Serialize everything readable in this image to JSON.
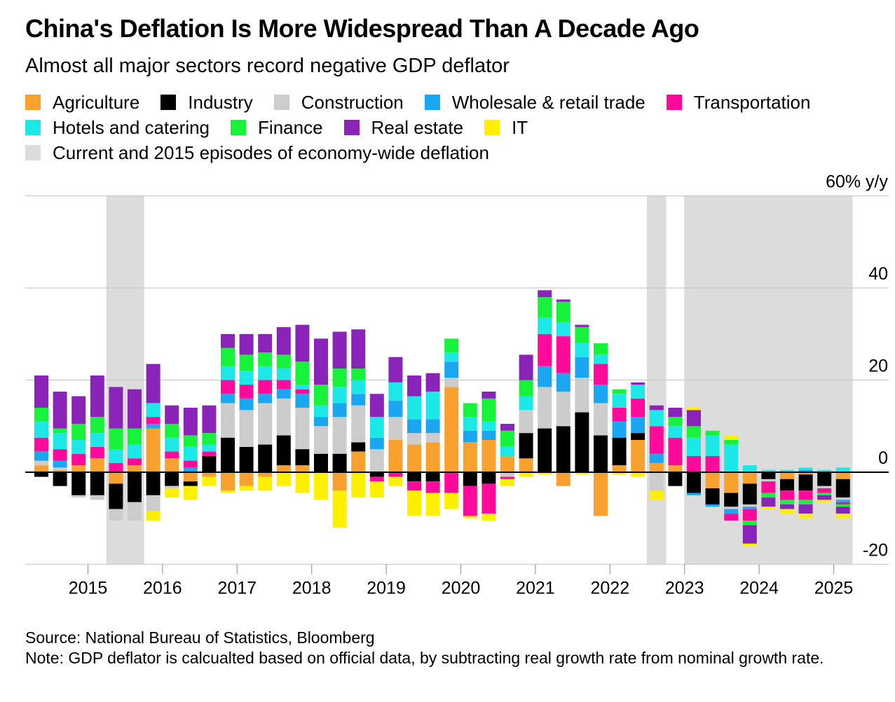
{
  "title": "China's Deflation Is More Widespread Than A Decade Ago",
  "subtitle": "Almost all major sectors record negative GDP deflator",
  "legend": {
    "row1": [
      {
        "label": "Agriculture",
        "color": "#F9A12E"
      },
      {
        "label": "Industry",
        "color": "#000000"
      },
      {
        "label": "Construction",
        "color": "#CCCCCC"
      },
      {
        "label": "Wholesale & retail trade",
        "color": "#1BA6F2"
      },
      {
        "label": "Transportation",
        "color": "#FF0A9A"
      }
    ],
    "row2": [
      {
        "label": "Hotels and catering",
        "color": "#1CE8E8"
      },
      {
        "label": "Finance",
        "color": "#17F23A"
      },
      {
        "label": "Real estate",
        "color": "#8A23B8"
      },
      {
        "label": "IT",
        "color": "#FFEF00"
      }
    ],
    "row3": [
      {
        "label": "Current and 2015 episodes of economy-wide deflation",
        "color": "#DCDCDC"
      }
    ]
  },
  "footer": {
    "source": "Source: National Bureau of Statistics, Bloomberg",
    "note": "Note: GDP deflator is calcualted based on official data, by subtracting real growth rate from nominal growth rate."
  },
  "chart_data": {
    "type": "bar",
    "stacked": true,
    "ylabel": "60% y/y",
    "ylim": [
      -20,
      60
    ],
    "yticks": [
      {
        "value": 60,
        "label": "60% y/y"
      },
      {
        "value": 40,
        "label": "40"
      },
      {
        "value": 20,
        "label": "20"
      },
      {
        "value": 0,
        "label": "0"
      },
      {
        "value": -20,
        "label": "-20"
      }
    ],
    "grid": true,
    "categories": [
      "2014Q3",
      "2014Q4",
      "2015Q1",
      "2015Q2",
      "2015Q3",
      "2015Q4",
      "2016Q1",
      "2016Q2",
      "2016Q3",
      "2016Q4",
      "2017Q1",
      "2017Q2",
      "2017Q3",
      "2017Q4",
      "2018Q1",
      "2018Q2",
      "2018Q3",
      "2018Q4",
      "2019Q1",
      "2019Q2",
      "2019Q3",
      "2019Q4",
      "2020Q1",
      "2020Q2",
      "2020Q3",
      "2020Q4",
      "2021Q1",
      "2021Q2",
      "2021Q3",
      "2021Q4",
      "2022Q1",
      "2022Q2",
      "2022Q3",
      "2022Q4",
      "2023Q1",
      "2023Q2",
      "2023Q3",
      "2023Q4",
      "2024Q1",
      "2024Q2",
      "2024Q3",
      "2024Q4",
      "2025Q1",
      "2025Q2"
    ],
    "x_tick_labels": [
      {
        "label": "2015",
        "index": 2.5
      },
      {
        "label": "2016",
        "index": 6.5
      },
      {
        "label": "2017",
        "index": 10.5
      },
      {
        "label": "2018",
        "index": 14.5
      },
      {
        "label": "2019",
        "index": 18.5
      },
      {
        "label": "2020",
        "index": 22.5
      },
      {
        "label": "2021",
        "index": 26.5
      },
      {
        "label": "2022",
        "index": 30.5
      },
      {
        "label": "2023",
        "index": 34.5
      },
      {
        "label": "2024",
        "index": 38.5
      },
      {
        "label": "2025",
        "index": 42.5
      }
    ],
    "deflation_periods": [
      {
        "from": 4,
        "to": 5
      },
      {
        "from": 33,
        "to": 33
      },
      {
        "from": 35,
        "to": 43
      }
    ],
    "series": [
      {
        "name": "Agriculture",
        "color": "#F9A12E",
        "values": [
          1.5,
          0.5,
          1.5,
          3,
          -2.5,
          1.5,
          9.5,
          3,
          -2,
          -1,
          -4,
          -3,
          -1,
          1.5,
          1.5,
          0,
          -4,
          4.5,
          0,
          7,
          6,
          6.5,
          18.5,
          6.5,
          7,
          3.5,
          3,
          0,
          -3,
          0,
          -9.5,
          1.5,
          7,
          2,
          1.5,
          0,
          -3.5,
          -4.5,
          -2.5,
          0,
          -1.5,
          -0.5,
          0,
          -1.5
        ]
      },
      {
        "name": "Industry",
        "color": "#000000",
        "values": [
          -1,
          -3,
          -5,
          -5,
          -5.5,
          -6.5,
          -5,
          -3,
          -1,
          3.5,
          7.5,
          5.5,
          6,
          6.5,
          3.5,
          4,
          4,
          2,
          -1,
          0,
          -2,
          -2,
          0,
          -3,
          -2.5,
          0,
          5.5,
          9.5,
          10,
          13,
          8,
          6,
          1.5,
          0,
          -3,
          -4.5,
          -3.5,
          -3,
          -4.5,
          -1.5,
          -2.5,
          -3.5,
          -3,
          -4
        ]
      },
      {
        "name": "Construction",
        "color": "#CCCCCC",
        "values": [
          1,
          0.5,
          -0.5,
          -1,
          -2.5,
          -4,
          -3.5,
          -0.5,
          0,
          0,
          7.5,
          8,
          9,
          8,
          9,
          6,
          8,
          8,
          5,
          5,
          2.5,
          2,
          2,
          0,
          0,
          -1,
          5,
          9,
          7.5,
          7.5,
          7,
          0,
          0,
          -4,
          0,
          0,
          0,
          -0.5,
          -0.5,
          -0.5,
          0,
          0,
          -0.5,
          -0.5
        ]
      },
      {
        "name": "Wholesale & retail trade",
        "color": "#1BA6F2",
        "values": [
          2,
          1.5,
          0,
          0,
          0,
          0,
          1,
          0,
          1,
          0,
          2,
          2.5,
          2,
          2,
          3,
          2,
          3,
          2.5,
          2.5,
          3.5,
          3,
          3,
          3.5,
          2.5,
          2,
          0,
          0,
          4.5,
          4,
          4.5,
          4,
          3.5,
          3.5,
          2,
          0,
          -0.5,
          -0.5,
          -1,
          -0.5,
          0,
          0,
          0.5,
          0,
          -0.5
        ]
      },
      {
        "name": "Transportation",
        "color": "#FF0A9A",
        "values": [
          3,
          2.5,
          2.5,
          2.5,
          2,
          1.5,
          1.5,
          1.5,
          1.5,
          1,
          3,
          3,
          3,
          2,
          1,
          0,
          0,
          0,
          -1,
          -1,
          -2,
          -2.5,
          -4.5,
          -6.5,
          -6.5,
          -0.5,
          0,
          7,
          8,
          0,
          4.5,
          3,
          4,
          6,
          6,
          3.5,
          3.5,
          -1.5,
          -2.5,
          -2.5,
          -2,
          -2,
          -1,
          -0.5
        ]
      },
      {
        "name": "Hotels and catering",
        "color": "#1CE8E8",
        "values": [
          3.5,
          3.5,
          3,
          3,
          3,
          3,
          3,
          3,
          3,
          1.5,
          3,
          3,
          3,
          2.5,
          1,
          2.5,
          3.5,
          3,
          4.5,
          4,
          5,
          6,
          2,
          3,
          2,
          2,
          3,
          3.5,
          3,
          3,
          2,
          3,
          3,
          3.5,
          2.5,
          4,
          4.5,
          6,
          1.5,
          0.5,
          0.5,
          0.5,
          0.5,
          1
        ]
      },
      {
        "name": "Finance",
        "color": "#17F23A",
        "values": [
          3,
          1,
          3.5,
          3.5,
          4.5,
          3.5,
          0,
          3,
          2.5,
          2.5,
          4,
          3.5,
          3,
          3,
          5,
          4.5,
          4,
          2.5,
          0,
          0,
          0,
          0,
          3,
          3,
          5,
          3.5,
          3.5,
          4.5,
          4.5,
          3.5,
          2.5,
          1,
          0,
          0,
          2,
          2.5,
          1,
          1,
          -1,
          -1,
          -1,
          -1,
          -0.5,
          -0.5
        ]
      },
      {
        "name": "Real estate",
        "color": "#8A23B8",
        "values": [
          7,
          8,
          6,
          9,
          9,
          8.5,
          8.5,
          4,
          6,
          6,
          3,
          4.5,
          4,
          6,
          8,
          10,
          8,
          8.5,
          5,
          5.5,
          4.5,
          4,
          0,
          0,
          1.5,
          1.5,
          5.5,
          1.5,
          0.5,
          0.5,
          0,
          0,
          0.5,
          1,
          2,
          3.5,
          0,
          0,
          -4,
          -2,
          -1,
          -2,
          -1,
          -1.5
        ]
      },
      {
        "name": "IT",
        "color": "#FFEF00",
        "values": [
          0,
          0,
          0,
          0,
          0,
          0,
          -2,
          -2,
          -3,
          -2,
          -0.5,
          -1,
          -3,
          -3,
          -4.5,
          -6,
          -8,
          -5.5,
          -3.5,
          -2,
          -5.5,
          -5,
          -3.5,
          -0.5,
          -1.5,
          -1.5,
          -1,
          -0.5,
          0,
          -0.5,
          0,
          -0.5,
          -1,
          -2,
          0,
          0.5,
          0,
          1,
          -0.5,
          -0.5,
          -1,
          -1,
          -0.5,
          -1
        ]
      }
    ]
  }
}
